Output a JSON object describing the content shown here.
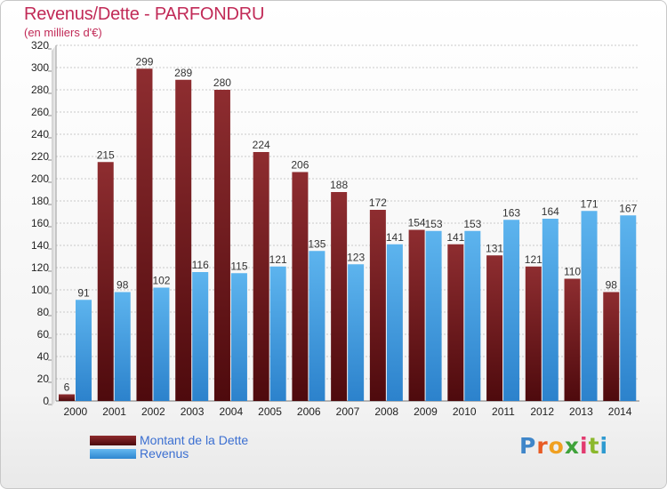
{
  "chart_data": {
    "type": "bar",
    "title": "Revenus/Dette - PARFONDRU",
    "subtitle": "(en milliers d'€)",
    "categories": [
      "2000",
      "2001",
      "2002",
      "2003",
      "2004",
      "2005",
      "2006",
      "2007",
      "2008",
      "2009",
      "2010",
      "2011",
      "2012",
      "2013",
      "2014"
    ],
    "series": [
      {
        "name": "Montant de la Dette",
        "color": "#7a1a1c",
        "values": [
          6,
          215,
          299,
          289,
          280,
          224,
          206,
          188,
          172,
          154,
          141,
          131,
          121,
          110,
          98
        ],
        "labels": [
          "6",
          "215",
          "299",
          "289",
          "280",
          "224",
          "206",
          "188",
          "172",
          "154",
          "141",
          "131",
          "121",
          "110",
          "98"
        ]
      },
      {
        "name": "Revenus",
        "color": "#4aa6e8",
        "values": [
          91,
          98,
          102,
          116,
          115,
          121,
          135,
          123,
          141,
          153,
          153,
          163,
          164,
          171,
          167
        ],
        "labels": [
          "91",
          "98",
          "102",
          "116",
          "115",
          "121",
          "135",
          "123",
          "141",
          "153",
          "153",
          "163",
          "164",
          "171",
          "167"
        ]
      }
    ],
    "ylim": [
      0,
      320
    ],
    "yticks": [
      "0",
      "20",
      "40",
      "60",
      "80",
      "100",
      "120",
      "140",
      "160",
      "180",
      "200",
      "220",
      "240",
      "260",
      "280",
      "300",
      "320"
    ],
    "grid": true,
    "legend": "bottom-left"
  },
  "legend": {
    "items": [
      {
        "label": "Montant de la Dette",
        "color": "#6b1418"
      },
      {
        "label": "Revenus",
        "color": "#4aa6e8"
      }
    ]
  },
  "logo": {
    "letters": [
      "P",
      "r",
      "o",
      "x",
      "i",
      "t",
      "i"
    ],
    "colors": [
      "#3f86c9",
      "#e85b24",
      "#f0a020",
      "#3fa23a",
      "#e23a6f",
      "#8bb82c",
      "#2e9ad0"
    ]
  }
}
